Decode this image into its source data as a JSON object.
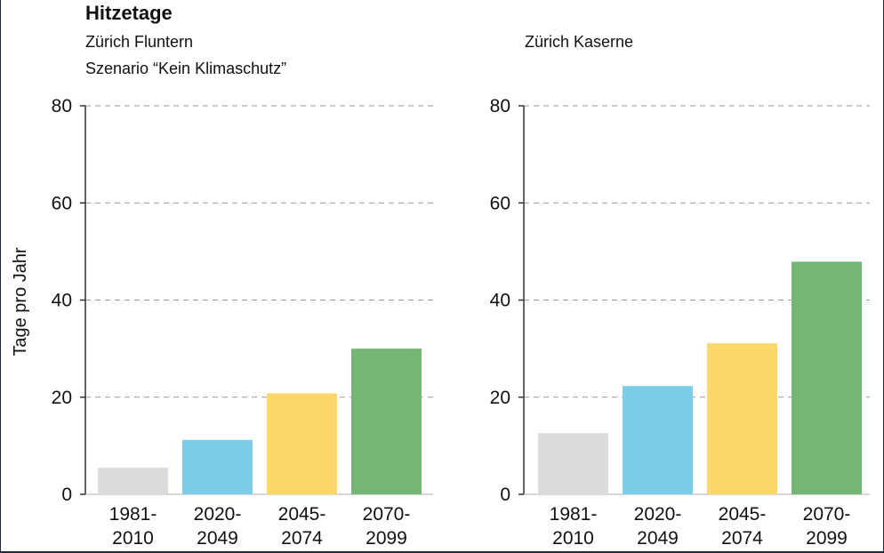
{
  "title": "Hitzetage",
  "scenario": "Szenario “Kein Klimaschutz”",
  "colors": {
    "1981-2010": "#dcdcdc",
    "2020-2049": "#7ecde8",
    "2045-2074": "#fcd86a",
    "2070-2099": "#74b774",
    "grid": "#9a9a9a",
    "axis": "#333333"
  },
  "chart_data": [
    {
      "type": "bar",
      "subtitle": "Zürich Fluntern",
      "ylabel": "Tage pro Jahr",
      "ylim": [
        0,
        80
      ],
      "yticks": [
        0,
        20,
        40,
        60,
        80
      ],
      "grid": true,
      "categories": [
        [
          "1981-",
          "2010"
        ],
        [
          "2020-",
          "2049"
        ],
        [
          "2045-",
          "2074"
        ],
        [
          "2070-",
          "2099"
        ]
      ],
      "keys": [
        "1981-2010",
        "2020-2049",
        "2045-2074",
        "2070-2099"
      ],
      "values": [
        5.5,
        11.2,
        20.8,
        30
      ]
    },
    {
      "type": "bar",
      "subtitle": "Zürich Kaserne",
      "ylabel": "",
      "ylim": [
        0,
        80
      ],
      "yticks": [
        0,
        20,
        40,
        60,
        80
      ],
      "grid": true,
      "categories": [
        [
          "1981-",
          "2010"
        ],
        [
          "2020-",
          "2049"
        ],
        [
          "2045-",
          "2074"
        ],
        [
          "2070-",
          "2099"
        ]
      ],
      "keys": [
        "1981-2010",
        "2020-2049",
        "2045-2074",
        "2070-2099"
      ],
      "values": [
        12.6,
        22.3,
        31.1,
        47.9
      ]
    }
  ]
}
